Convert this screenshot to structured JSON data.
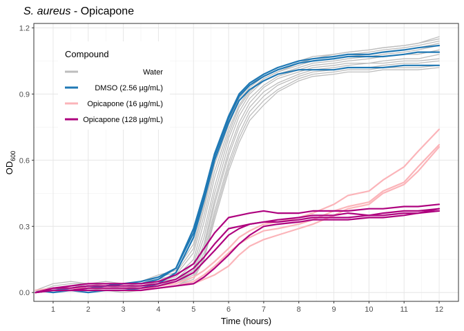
{
  "chart_data": {
    "type": "line",
    "title_italic": "S. aureus",
    "title_rest": " - Opicapone",
    "xlabel": "Time (hours)",
    "ylabel_main": "OD",
    "ylabel_sub": "600",
    "xlim": [
      0.45,
      12.55
    ],
    "ylim": [
      -0.04,
      1.22
    ],
    "x_ticks": [
      1,
      2,
      3,
      4,
      5,
      6,
      7,
      8,
      9,
      10,
      11,
      12
    ],
    "y_ticks": [
      0.0,
      0.3,
      0.6,
      0.9,
      1.2
    ],
    "y_tick_labels": [
      "0.0",
      "0.3",
      "0.6",
      "0.9",
      "1.2"
    ],
    "grid": true,
    "legend": {
      "title": "Compound",
      "position": "inside-top-left",
      "entries": [
        {
          "label": "Water",
          "color": "#bdbdbd"
        },
        {
          "label": "DMSO (2.56 µg/mL)",
          "color": "#1f78b4"
        },
        {
          "label": "Opicapone (16 µg/mL)",
          "color": "#fbb4b9"
        },
        {
          "label": "Opicapone (128 µg/mL)",
          "color": "#ae017e"
        }
      ]
    },
    "x": [
      0.5,
      1.0,
      1.5,
      2.0,
      2.5,
      3.0,
      3.5,
      4.0,
      4.5,
      5.0,
      5.3,
      5.6,
      6.0,
      6.3,
      6.6,
      7.0,
      7.4,
      8.0,
      8.4,
      9.0,
      9.4,
      10.0,
      10.4,
      11.0,
      11.4,
      12.0
    ],
    "series": [
      {
        "group": "Water",
        "color": "#bdbdbd",
        "values": [
          0.01,
          0.04,
          0.05,
          0.04,
          0.05,
          0.04,
          0.05,
          0.08,
          0.1,
          0.22,
          0.4,
          0.6,
          0.78,
          0.88,
          0.94,
          0.99,
          1.02,
          1.05,
          1.07,
          1.08,
          1.09,
          1.1,
          1.11,
          1.12,
          1.13,
          1.16
        ]
      },
      {
        "group": "Water",
        "color": "#bdbdbd",
        "values": [
          0.0,
          0.03,
          0.04,
          0.04,
          0.04,
          0.03,
          0.04,
          0.07,
          0.09,
          0.2,
          0.38,
          0.58,
          0.76,
          0.87,
          0.93,
          0.98,
          1.01,
          1.04,
          1.06,
          1.08,
          1.09,
          1.1,
          1.11,
          1.12,
          1.13,
          1.15
        ]
      },
      {
        "group": "Water",
        "color": "#bdbdbd",
        "values": [
          0.01,
          0.02,
          0.03,
          0.03,
          0.04,
          0.04,
          0.04,
          0.06,
          0.08,
          0.18,
          0.35,
          0.55,
          0.74,
          0.85,
          0.92,
          0.97,
          1.0,
          1.04,
          1.06,
          1.07,
          1.08,
          1.09,
          1.1,
          1.11,
          1.12,
          1.14
        ]
      },
      {
        "group": "Water",
        "color": "#bdbdbd",
        "values": [
          0.0,
          0.02,
          0.03,
          0.03,
          0.03,
          0.03,
          0.03,
          0.05,
          0.07,
          0.15,
          0.32,
          0.52,
          0.72,
          0.84,
          0.91,
          0.97,
          1.0,
          1.03,
          1.05,
          1.06,
          1.07,
          1.08,
          1.09,
          1.1,
          1.11,
          1.13
        ]
      },
      {
        "group": "Water",
        "color": "#bdbdbd",
        "values": [
          0.01,
          0.01,
          0.02,
          0.02,
          0.03,
          0.02,
          0.03,
          0.05,
          0.06,
          0.13,
          0.28,
          0.48,
          0.7,
          0.82,
          0.9,
          0.96,
          0.99,
          1.02,
          1.04,
          1.05,
          1.06,
          1.07,
          1.08,
          1.09,
          1.1,
          1.12
        ]
      },
      {
        "group": "Water",
        "color": "#bdbdbd",
        "values": [
          0.0,
          0.01,
          0.02,
          0.02,
          0.02,
          0.02,
          0.03,
          0.04,
          0.05,
          0.11,
          0.25,
          0.45,
          0.67,
          0.8,
          0.88,
          0.94,
          0.98,
          1.01,
          1.03,
          1.04,
          1.05,
          1.06,
          1.07,
          1.08,
          1.08,
          1.1
        ]
      },
      {
        "group": "Water",
        "color": "#bdbdbd",
        "values": [
          0.0,
          0.02,
          0.02,
          0.02,
          0.03,
          0.02,
          0.02,
          0.04,
          0.05,
          0.1,
          0.22,
          0.42,
          0.64,
          0.77,
          0.86,
          0.93,
          0.97,
          1.0,
          1.02,
          1.03,
          1.04,
          1.04,
          1.05,
          1.06,
          1.06,
          1.08
        ]
      },
      {
        "group": "Water",
        "color": "#bdbdbd",
        "values": [
          0.01,
          0.01,
          0.02,
          0.01,
          0.02,
          0.02,
          0.02,
          0.03,
          0.04,
          0.09,
          0.2,
          0.4,
          0.62,
          0.75,
          0.84,
          0.91,
          0.95,
          0.99,
          1.01,
          1.02,
          1.03,
          1.04,
          1.04,
          1.05,
          1.05,
          1.06
        ]
      },
      {
        "group": "Water",
        "color": "#bdbdbd",
        "values": [
          0.0,
          0.01,
          0.01,
          0.01,
          0.01,
          0.01,
          0.02,
          0.03,
          0.04,
          0.08,
          0.18,
          0.37,
          0.59,
          0.72,
          0.82,
          0.89,
          0.94,
          0.98,
          1.0,
          1.01,
          1.02,
          1.02,
          1.03,
          1.04,
          1.04,
          1.05
        ]
      },
      {
        "group": "Water",
        "color": "#bdbdbd",
        "values": [
          0.0,
          0.01,
          0.01,
          0.01,
          0.01,
          0.01,
          0.01,
          0.02,
          0.03,
          0.07,
          0.16,
          0.35,
          0.57,
          0.7,
          0.8,
          0.87,
          0.92,
          0.97,
          0.99,
          1.0,
          1.01,
          1.01,
          1.02,
          1.02,
          1.02,
          1.03
        ]
      },
      {
        "group": "Water",
        "color": "#bdbdbd",
        "values": [
          0.0,
          0.01,
          0.01,
          0.01,
          0.01,
          0.0,
          0.01,
          0.02,
          0.03,
          0.06,
          0.15,
          0.33,
          0.55,
          0.68,
          0.78,
          0.85,
          0.91,
          0.96,
          0.98,
          0.99,
          1.0,
          1.0,
          1.01,
          1.01,
          1.01,
          1.02
        ]
      },
      {
        "group": "DMSO (2.56 µg/mL)",
        "color": "#1f78b4",
        "values": [
          0.01,
          0.0,
          0.01,
          0.02,
          0.03,
          0.04,
          0.05,
          0.07,
          0.11,
          0.29,
          0.45,
          0.63,
          0.8,
          0.9,
          0.95,
          0.99,
          1.02,
          1.05,
          1.06,
          1.07,
          1.08,
          1.08,
          1.09,
          1.1,
          1.11,
          1.12
        ]
      },
      {
        "group": "DMSO (2.56 µg/mL)",
        "color": "#1f78b4",
        "values": [
          0.0,
          0.01,
          0.02,
          0.03,
          0.03,
          0.04,
          0.04,
          0.06,
          0.11,
          0.27,
          0.44,
          0.62,
          0.79,
          0.89,
          0.94,
          0.98,
          1.01,
          1.04,
          1.05,
          1.06,
          1.07,
          1.07,
          1.07,
          1.08,
          1.09,
          1.09
        ]
      },
      {
        "group": "DMSO (2.56 µg/mL)",
        "color": "#1f78b4",
        "values": [
          0.0,
          0.01,
          0.01,
          0.0,
          0.01,
          0.01,
          0.02,
          0.04,
          0.09,
          0.25,
          0.42,
          0.6,
          0.77,
          0.87,
          0.92,
          0.96,
          0.99,
          1.01,
          1.01,
          1.01,
          1.02,
          1.02,
          1.02,
          1.03,
          1.03,
          1.03
        ]
      },
      {
        "group": "Opicapone (16 µg/mL)",
        "color": "#fbb4b9",
        "values": [
          0.01,
          0.02,
          0.02,
          0.02,
          0.02,
          0.02,
          0.02,
          0.03,
          0.04,
          0.07,
          0.1,
          0.14,
          0.2,
          0.25,
          0.28,
          0.31,
          0.32,
          0.34,
          0.36,
          0.4,
          0.44,
          0.46,
          0.51,
          0.57,
          0.64,
          0.74
        ]
      },
      {
        "group": "Opicapone (16 µg/mL)",
        "color": "#fbb4b9",
        "values": [
          0.0,
          0.02,
          0.02,
          0.02,
          0.02,
          0.02,
          0.02,
          0.02,
          0.03,
          0.05,
          0.08,
          0.12,
          0.18,
          0.22,
          0.25,
          0.28,
          0.29,
          0.31,
          0.33,
          0.37,
          0.39,
          0.41,
          0.46,
          0.5,
          0.57,
          0.67
        ]
      },
      {
        "group": "Opicapone (16 µg/mL)",
        "color": "#fbb4b9",
        "values": [
          0.0,
          0.01,
          0.01,
          0.01,
          0.01,
          0.01,
          0.01,
          0.02,
          0.03,
          0.04,
          0.06,
          0.08,
          0.12,
          0.17,
          0.21,
          0.24,
          0.26,
          0.29,
          0.31,
          0.35,
          0.38,
          0.4,
          0.45,
          0.49,
          0.55,
          0.66
        ]
      },
      {
        "group": "Opicapone (128 µg/mL)",
        "color": "#ae017e",
        "values": [
          0.0,
          0.02,
          0.03,
          0.04,
          0.04,
          0.04,
          0.04,
          0.05,
          0.08,
          0.13,
          0.2,
          0.27,
          0.34,
          0.35,
          0.36,
          0.37,
          0.36,
          0.36,
          0.37,
          0.37,
          0.37,
          0.38,
          0.38,
          0.39,
          0.39,
          0.4
        ]
      },
      {
        "group": "Opicapone (128 µg/mL)",
        "color": "#ae017e",
        "values": [
          0.0,
          0.02,
          0.02,
          0.03,
          0.03,
          0.03,
          0.03,
          0.04,
          0.06,
          0.11,
          0.16,
          0.22,
          0.29,
          0.3,
          0.31,
          0.32,
          0.33,
          0.34,
          0.35,
          0.35,
          0.36,
          0.35,
          0.36,
          0.37,
          0.37,
          0.38
        ]
      },
      {
        "group": "Opicapone (128 µg/mL)",
        "color": "#ae017e",
        "values": [
          0.0,
          0.01,
          0.01,
          0.02,
          0.02,
          0.02,
          0.02,
          0.03,
          0.05,
          0.09,
          0.14,
          0.19,
          0.26,
          0.29,
          0.31,
          0.32,
          0.32,
          0.33,
          0.34,
          0.34,
          0.34,
          0.35,
          0.35,
          0.36,
          0.36,
          0.37
        ]
      },
      {
        "group": "Opicapone (128 µg/mL)",
        "color": "#ae017e",
        "values": [
          0.0,
          0.01,
          0.01,
          0.01,
          0.01,
          0.01,
          0.01,
          0.02,
          0.03,
          0.04,
          0.07,
          0.11,
          0.17,
          0.22,
          0.26,
          0.3,
          0.31,
          0.32,
          0.33,
          0.33,
          0.33,
          0.34,
          0.34,
          0.35,
          0.36,
          0.38
        ]
      }
    ]
  }
}
